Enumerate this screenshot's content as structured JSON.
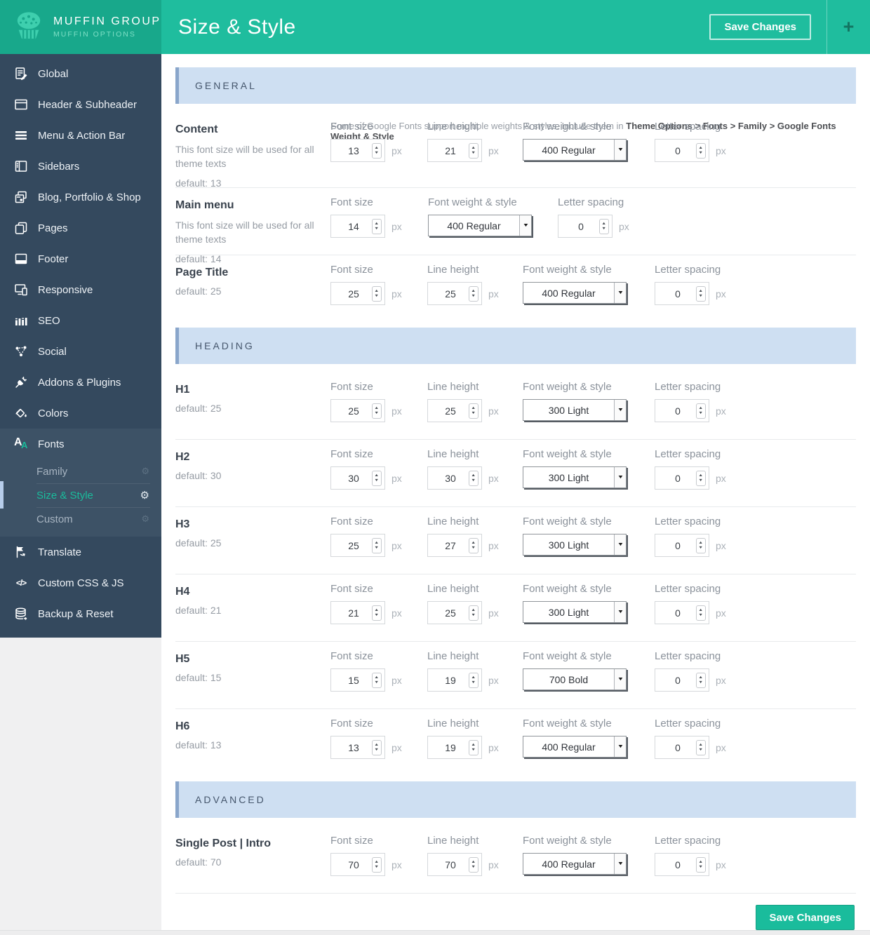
{
  "colors": {
    "accent": "#1abc9c",
    "topbar": "#1fbd9e",
    "logo_bg": "#18a88b",
    "sidebar": "#34495e",
    "section_header_bg": "#cedff2",
    "section_header_border": "#8aa6cb"
  },
  "header": {
    "logo_title": "MUFFIN GROUP",
    "logo_sub": "MUFFIN OPTIONS",
    "title": "Size & Style",
    "save_label": "Save Changes",
    "plus": "+"
  },
  "sidebar": {
    "items": [
      {
        "name": "global",
        "icon": "doc-edit-icon",
        "label": "Global"
      },
      {
        "name": "header-subheader",
        "icon": "window-icon",
        "label": "Header & Subheader"
      },
      {
        "name": "menu-action-bar",
        "icon": "menu-icon",
        "label": "Menu & Action Bar"
      },
      {
        "name": "sidebars",
        "icon": "sidebar-layout-icon",
        "label": "Sidebars"
      },
      {
        "name": "blog-portfolio-shop",
        "icon": "blog-icon",
        "label": "Blog, Portfolio & Shop"
      },
      {
        "name": "pages",
        "icon": "pages-icon",
        "label": "Pages"
      },
      {
        "name": "footer",
        "icon": "footer-icon",
        "label": "Footer"
      },
      {
        "name": "responsive",
        "icon": "responsive-icon",
        "label": "Responsive"
      },
      {
        "name": "seo",
        "icon": "chart-bars-icon",
        "label": "SEO"
      },
      {
        "name": "social",
        "icon": "share-icon",
        "label": "Social"
      },
      {
        "name": "addons-plugins",
        "icon": "plug-icon",
        "label": "Addons & Plugins"
      },
      {
        "name": "colors",
        "icon": "paint-icon",
        "label": "Colors"
      },
      {
        "name": "fonts",
        "icon": "fonts-icon",
        "label": "Fonts",
        "children": [
          {
            "name": "family",
            "label": "Family",
            "active": false
          },
          {
            "name": "size-style",
            "label": "Size & Style",
            "active": true
          },
          {
            "name": "custom",
            "label": "Custom",
            "active": false
          }
        ]
      },
      {
        "name": "translate",
        "icon": "flag-icon",
        "label": "Translate"
      },
      {
        "name": "custom-css-js",
        "icon": "code-icon",
        "label": "Custom CSS & JS"
      },
      {
        "name": "backup-reset",
        "icon": "database-icon",
        "label": "Backup & Reset"
      }
    ]
  },
  "field_labels": {
    "font_size": "Font size",
    "line_height": "Line height",
    "font_weight": "Font weight & style",
    "letter_spacing": "Letter spacing",
    "unit": "px"
  },
  "sections": [
    {
      "title": "GENERAL",
      "rows": [
        {
          "title": "Content",
          "desc": "This font size will be used for all theme texts",
          "default": "default: 13",
          "tall": true,
          "values": {
            "font_size": "13",
            "line_height": "21",
            "font_weight": "400 Regular",
            "letter_spacing": "0"
          },
          "note_gray": "Some of Google Fonts support multiple weights & styles. Include them in ",
          "note_bold": "Theme Options > Fonts > Family > Google Fonts Weight & Style"
        },
        {
          "title": "Main menu",
          "desc": "This font size will be used for all theme texts",
          "default": "default: 14",
          "compact": true,
          "values": {
            "font_size": "14",
            "line_height": null,
            "font_weight": "400 Regular",
            "letter_spacing": "0"
          }
        },
        {
          "title": "Page Title",
          "default": "default: 25",
          "values": {
            "font_size": "25",
            "line_height": "25",
            "font_weight": "400 Regular",
            "letter_spacing": "0"
          }
        }
      ]
    },
    {
      "title": "HEADING",
      "rows": [
        {
          "title": "H1",
          "default": "default: 25",
          "values": {
            "font_size": "25",
            "line_height": "25",
            "font_weight": "300 Light",
            "letter_spacing": "0"
          }
        },
        {
          "title": "H2",
          "default": "default: 30",
          "values": {
            "font_size": "30",
            "line_height": "30",
            "font_weight": "300 Light",
            "letter_spacing": "0"
          }
        },
        {
          "title": "H3",
          "default": "default: 25",
          "values": {
            "font_size": "25",
            "line_height": "27",
            "font_weight": "300 Light",
            "letter_spacing": "0"
          }
        },
        {
          "title": "H4",
          "default": "default: 21",
          "values": {
            "font_size": "21",
            "line_height": "25",
            "font_weight": "300 Light",
            "letter_spacing": "0"
          }
        },
        {
          "title": "H5",
          "default": "default: 15",
          "values": {
            "font_size": "15",
            "line_height": "19",
            "font_weight": "700 Bold",
            "letter_spacing": "0"
          }
        },
        {
          "title": "H6",
          "default": "default: 13",
          "values": {
            "font_size": "13",
            "line_height": "19",
            "font_weight": "400 Regular",
            "letter_spacing": "0"
          }
        }
      ]
    },
    {
      "title": "ADVANCED",
      "rows": [
        {
          "title": "Single Post | Intro",
          "default": "default: 70",
          "values": {
            "font_size": "70",
            "line_height": "70",
            "font_weight": "400 Regular",
            "letter_spacing": "0"
          }
        }
      ]
    }
  ],
  "footer": {
    "save_label": "Save Changes"
  }
}
